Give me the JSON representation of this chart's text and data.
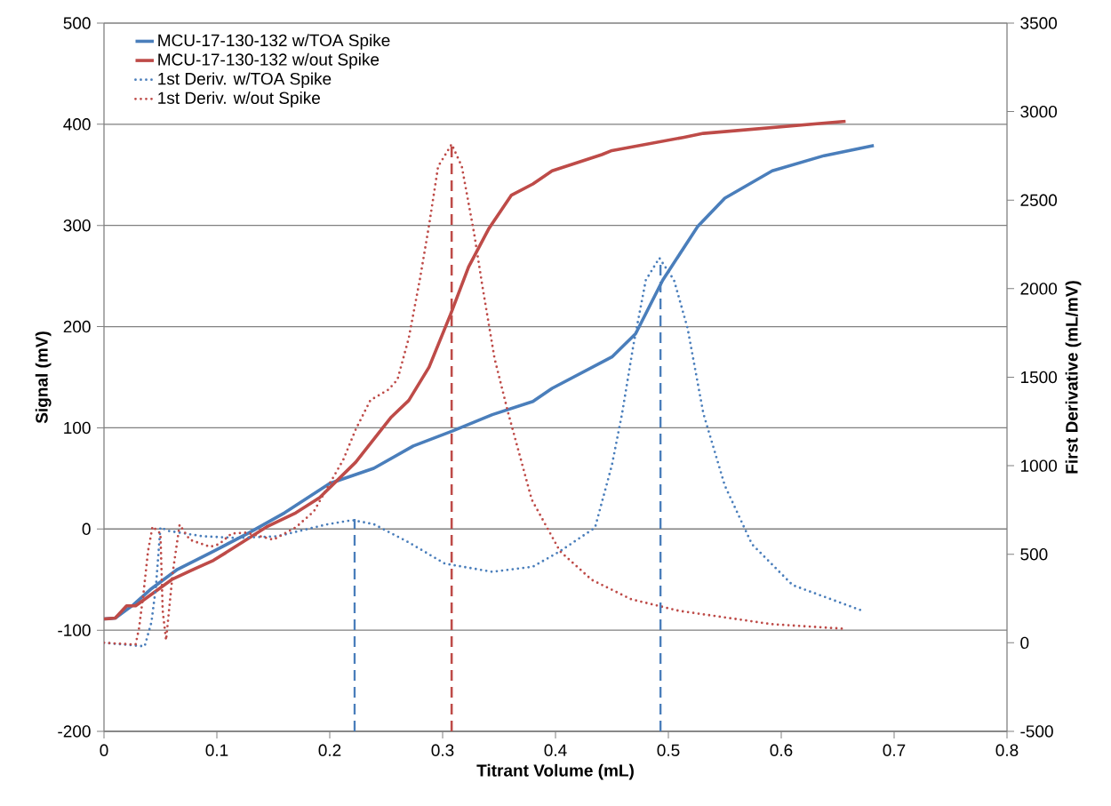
{
  "chart_data": {
    "type": "line",
    "xlabel": "Titrant Volume (mL)",
    "ylabel": "Signal (mV)",
    "y2label": "First Derivative (mL/mV)",
    "xlim": [
      0,
      0.8
    ],
    "xticks": [
      0,
      0.1,
      0.2,
      0.3,
      0.4,
      0.5,
      0.6,
      0.7,
      0.8
    ],
    "ylim": [
      -200,
      500
    ],
    "yticks": [
      -200,
      -100,
      0,
      100,
      200,
      300,
      400,
      500
    ],
    "y2lim": [
      -500,
      3500
    ],
    "y2ticks": [
      -500,
      0,
      500,
      1000,
      1500,
      2000,
      2500,
      3000,
      3500
    ],
    "grid": "y",
    "legend": "top left",
    "series": [
      {
        "name": "MCU-17-130-132 w/TOA Spike",
        "color": "#4a7ebb",
        "line_style": "solid",
        "x": [
          0,
          0.01,
          0.026,
          0.042,
          0.065,
          0.097,
          0.128,
          0.16,
          0.2,
          0.239,
          0.274,
          0.309,
          0.344,
          0.38,
          0.397,
          0.45,
          0.471,
          0.495,
          0.526,
          0.55,
          0.592,
          0.638,
          0.682
        ],
        "values": [
          -89,
          -88,
          -75,
          -59,
          -40,
          -22,
          -4,
          16,
          45,
          60,
          82,
          97,
          113,
          126,
          139,
          170,
          193,
          246,
          299,
          327,
          354,
          369,
          379
        ]
      },
      {
        "name": "MCU-17-130-132 w/out Spike",
        "color": "#be4b48",
        "line_style": "solid",
        "x": [
          0,
          0.01,
          0.02,
          0.028,
          0.044,
          0.06,
          0.079,
          0.097,
          0.11,
          0.144,
          0.17,
          0.191,
          0.223,
          0.254,
          0.27,
          0.288,
          0.307,
          0.323,
          0.341,
          0.361,
          0.38,
          0.397,
          0.441,
          0.45,
          0.513,
          0.531,
          0.657
        ],
        "values": [
          -89,
          -88,
          -76,
          -76,
          -63,
          -50,
          -40,
          -31,
          -22,
          2,
          16,
          31,
          66,
          110,
          127,
          160,
          212,
          259,
          297,
          330,
          341,
          354,
          370,
          374,
          387,
          391,
          403
        ]
      },
      {
        "name": "1st Deriv. w/TOA Spike",
        "color": "#4a7ebb",
        "line_style": "dotted",
        "axis": "y2",
        "x": [
          0,
          0.036,
          0.042,
          0.046,
          0.05,
          0.057,
          0.087,
          0.118,
          0.154,
          0.197,
          0.22,
          0.239,
          0.27,
          0.302,
          0.344,
          0.38,
          0.404,
          0.435,
          0.45,
          0.459,
          0.469,
          0.48,
          0.492,
          0.505,
          0.517,
          0.531,
          0.55,
          0.574,
          0.61,
          0.674
        ],
        "values": [
          0,
          -20,
          115,
          316,
          652,
          632,
          602,
          592,
          602,
          668,
          693,
          670,
          567,
          447,
          401,
          430,
          517,
          650,
          1004,
          1295,
          1681,
          2048,
          2173,
          2048,
          1777,
          1295,
          888,
          557,
          326,
          176
        ]
      },
      {
        "name": "1st Deriv. w/out Spike",
        "color": "#be4b48",
        "line_style": "dotted",
        "axis": "y2",
        "x": [
          0,
          0.028,
          0.031,
          0.035,
          0.039,
          0.043,
          0.05,
          0.052,
          0.055,
          0.061,
          0.067,
          0.076,
          0.094,
          0.102,
          0.113,
          0.126,
          0.15,
          0.17,
          0.186,
          0.212,
          0.223,
          0.236,
          0.252,
          0.26,
          0.27,
          0.28,
          0.288,
          0.296,
          0.308,
          0.317,
          0.328,
          0.335,
          0.346,
          0.358,
          0.379,
          0.404,
          0.432,
          0.467,
          0.509,
          0.592,
          0.654
        ],
        "values": [
          0,
          -10,
          80,
          281,
          517,
          657,
          617,
          181,
          15,
          401,
          667,
          582,
          542,
          557,
          617,
          622,
          582,
          652,
          743,
          1034,
          1205,
          1370,
          1430,
          1486,
          1721,
          2058,
          2359,
          2690,
          2816,
          2690,
          2309,
          2023,
          1606,
          1300,
          808,
          517,
          356,
          246,
          181,
          105,
          80
        ]
      },
      {
        "color": "#4a7ebb",
        "line_style": "dashed",
        "axis": "y2",
        "x": [
          0.222,
          0.222
        ],
        "values": [
          -500,
          700
        ]
      },
      {
        "color": "#be4b48",
        "line_style": "dashed",
        "axis": "y2",
        "x": [
          0.308,
          0.308
        ],
        "values": [
          -500,
          2816
        ]
      },
      {
        "color": "#4a7ebb",
        "line_style": "dashed",
        "axis": "y2",
        "x": [
          0.493,
          0.493
        ],
        "values": [
          -500,
          2150
        ]
      }
    ]
  }
}
